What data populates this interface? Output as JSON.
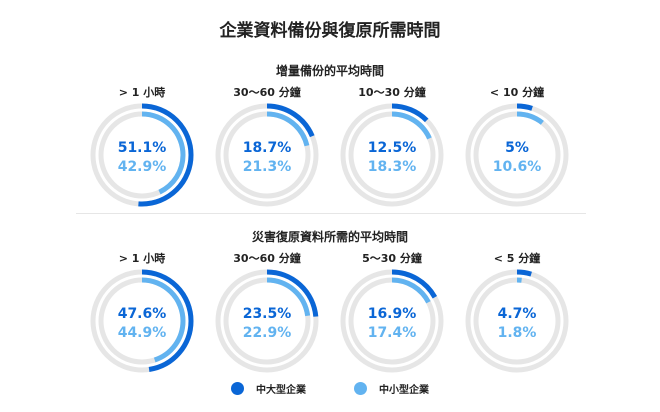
{
  "title": "企業資料備份與復原所需時間",
  "colors": {
    "large": "#0a66d6",
    "small": "#62b3f0",
    "track": "#e6e6e6"
  },
  "legend": [
    {
      "label": "中大型企業",
      "color": "#0a66d6"
    },
    {
      "label": "中小型企業",
      "color": "#62b3f0"
    }
  ],
  "chart_data": [
    {
      "type": "donut",
      "title": "增量備份的平均時間",
      "categories": [
        "> 1 小時",
        "30～60 分鐘",
        "10～30 分鐘",
        "< 10 分鐘"
      ],
      "series": [
        {
          "name": "中大型企業",
          "values": [
            51.1,
            18.7,
            12.5,
            5
          ]
        },
        {
          "name": "中小型企業",
          "values": [
            42.9,
            21.3,
            18.3,
            10.6
          ]
        }
      ],
      "value_labels": {
        "large": [
          "51.1%",
          "18.7%",
          "12.5%",
          "5%"
        ],
        "small": [
          "42.9%",
          "21.3%",
          "18.3%",
          "10.6%"
        ]
      }
    },
    {
      "type": "donut",
      "title": "災害復原資料所需的平均時間",
      "categories": [
        "> 1 小時",
        "30～60 分鐘",
        "5～30 分鐘",
        "< 5 分鐘"
      ],
      "series": [
        {
          "name": "中大型企業",
          "values": [
            47.6,
            23.5,
            16.9,
            4.7
          ]
        },
        {
          "name": "中小型企業",
          "values": [
            44.9,
            22.9,
            17.4,
            1.8
          ]
        }
      ],
      "value_labels": {
        "large": [
          "47.6%",
          "23.5%",
          "16.9%",
          "4.7%"
        ],
        "small": [
          "44.9%",
          "22.9%",
          "17.4%",
          "1.8%"
        ]
      }
    }
  ]
}
